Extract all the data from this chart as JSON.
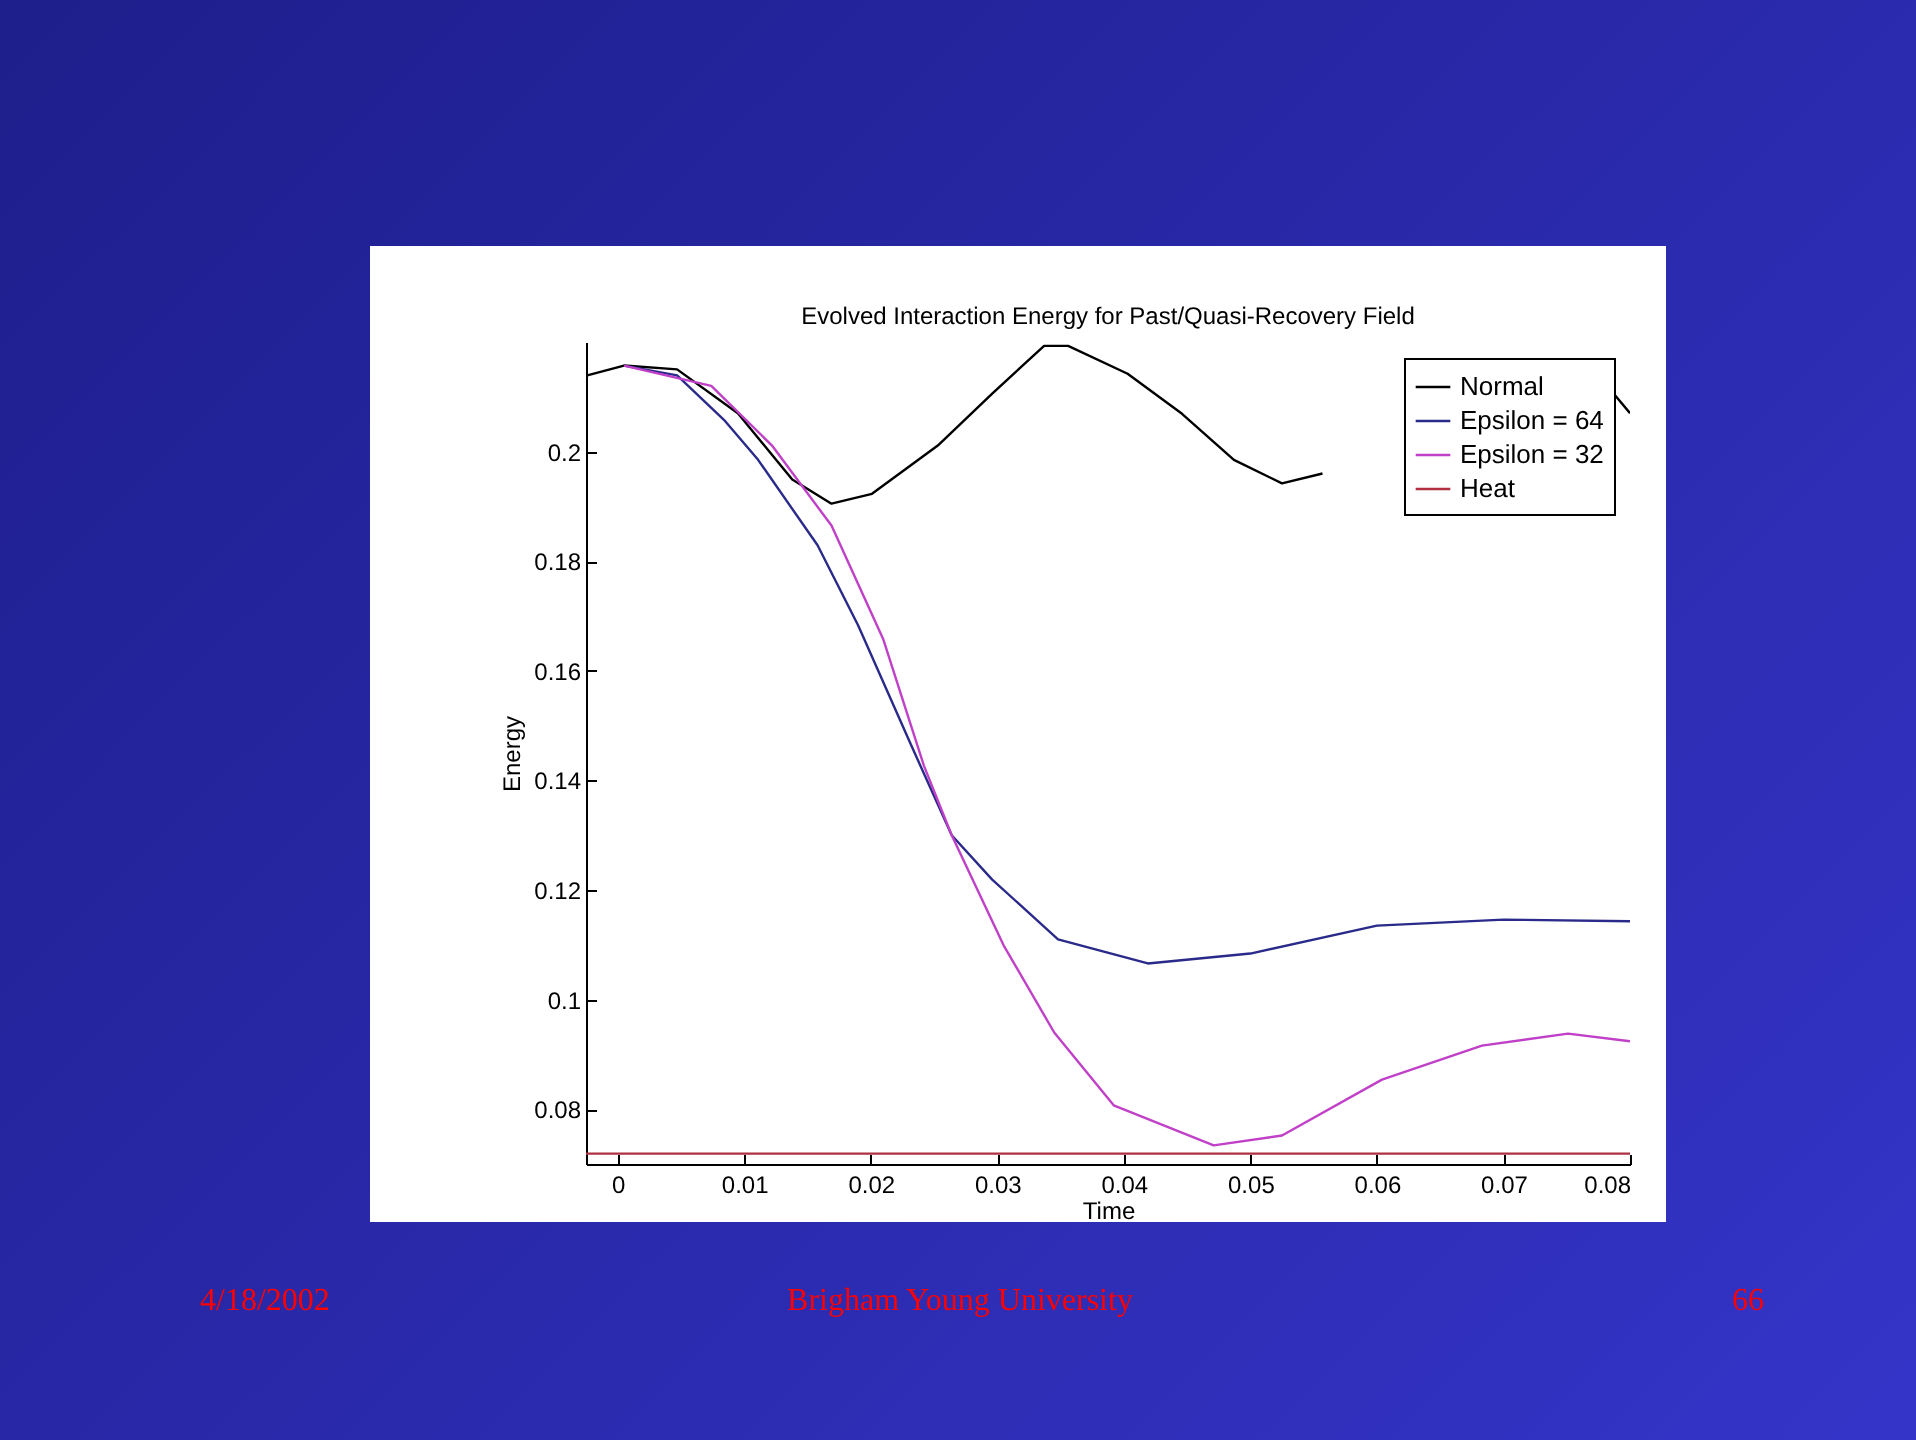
{
  "chart_data": {
    "type": "line",
    "title": "Evolved Interaction Energy for Past/Quasi-Recovery Field",
    "xlabel": "Time",
    "ylabel": "Energy",
    "xlim": [
      -0.0025,
      0.08
    ],
    "xticks": [
      0,
      0.01,
      0.02,
      0.03,
      0.04,
      0.05,
      0.06,
      0.07,
      0.08
    ],
    "ylim": [
      0.07,
      0.22
    ],
    "yticks": [
      0.08,
      0.1,
      0.12,
      0.14,
      0.16,
      0.18,
      0.2
    ],
    "legend": "top right",
    "marker": "none",
    "line_style": "solid",
    "annotations": [
      "4/18/2002",
      "Brigham Young University",
      "66"
    ],
    "series": [
      {
        "name": "Normal",
        "color": "#000000",
        "x": [
          -0.0024,
          0.0005,
          0.0047,
          0.0095,
          0.0138,
          0.0169,
          0.0201,
          0.0253,
          0.0296,
          0.0337,
          0.0356,
          0.0403,
          0.0446,
          0.0487,
          0.0525,
          0.0557,
          0.0665,
          0.0787,
          0.08
        ],
        "values": [
          0.2139,
          0.2157,
          0.215,
          0.207,
          0.1949,
          0.1905,
          0.1923,
          0.2011,
          0.2106,
          0.2193,
          0.2193,
          0.2142,
          0.2069,
          0.1985,
          0.1942,
          0.196,
          null,
          0.2106,
          0.207
        ]
      },
      {
        "name": "Epsilon = 64",
        "color": "#2a2a8a",
        "x": [
          0.0005,
          0.0047,
          0.0084,
          0.0111,
          0.0158,
          0.019,
          0.0232,
          0.0264,
          0.0296,
          0.0348,
          0.0419,
          0.05,
          0.06,
          0.07,
          0.08
        ],
        "values": [
          0.2157,
          0.2139,
          0.2058,
          0.1985,
          0.1829,
          0.1683,
          0.1464,
          0.13,
          0.1219,
          0.111,
          0.1066,
          0.1084,
          0.1135,
          0.1146,
          0.1143
        ]
      },
      {
        "name": "Epsilon = 32",
        "color": "#c040c8",
        "x": [
          0.0005,
          0.0074,
          0.0122,
          0.0169,
          0.021,
          0.0242,
          0.0264,
          0.0305,
          0.0345,
          0.0392,
          0.0471,
          0.0525,
          0.0604,
          0.0683,
          0.0751,
          0.08
        ],
        "values": [
          0.2157,
          0.212,
          0.2011,
          0.1865,
          0.1657,
          0.1427,
          0.13,
          0.1099,
          0.094,
          0.0807,
          0.0734,
          0.0752,
          0.0854,
          0.0916,
          0.0938,
          0.0924
        ]
      },
      {
        "name": "Heat",
        "color": "#b03040",
        "x": [
          -0.0025,
          0.08
        ],
        "values": [
          0.0719,
          0.0719
        ]
      }
    ]
  }
}
